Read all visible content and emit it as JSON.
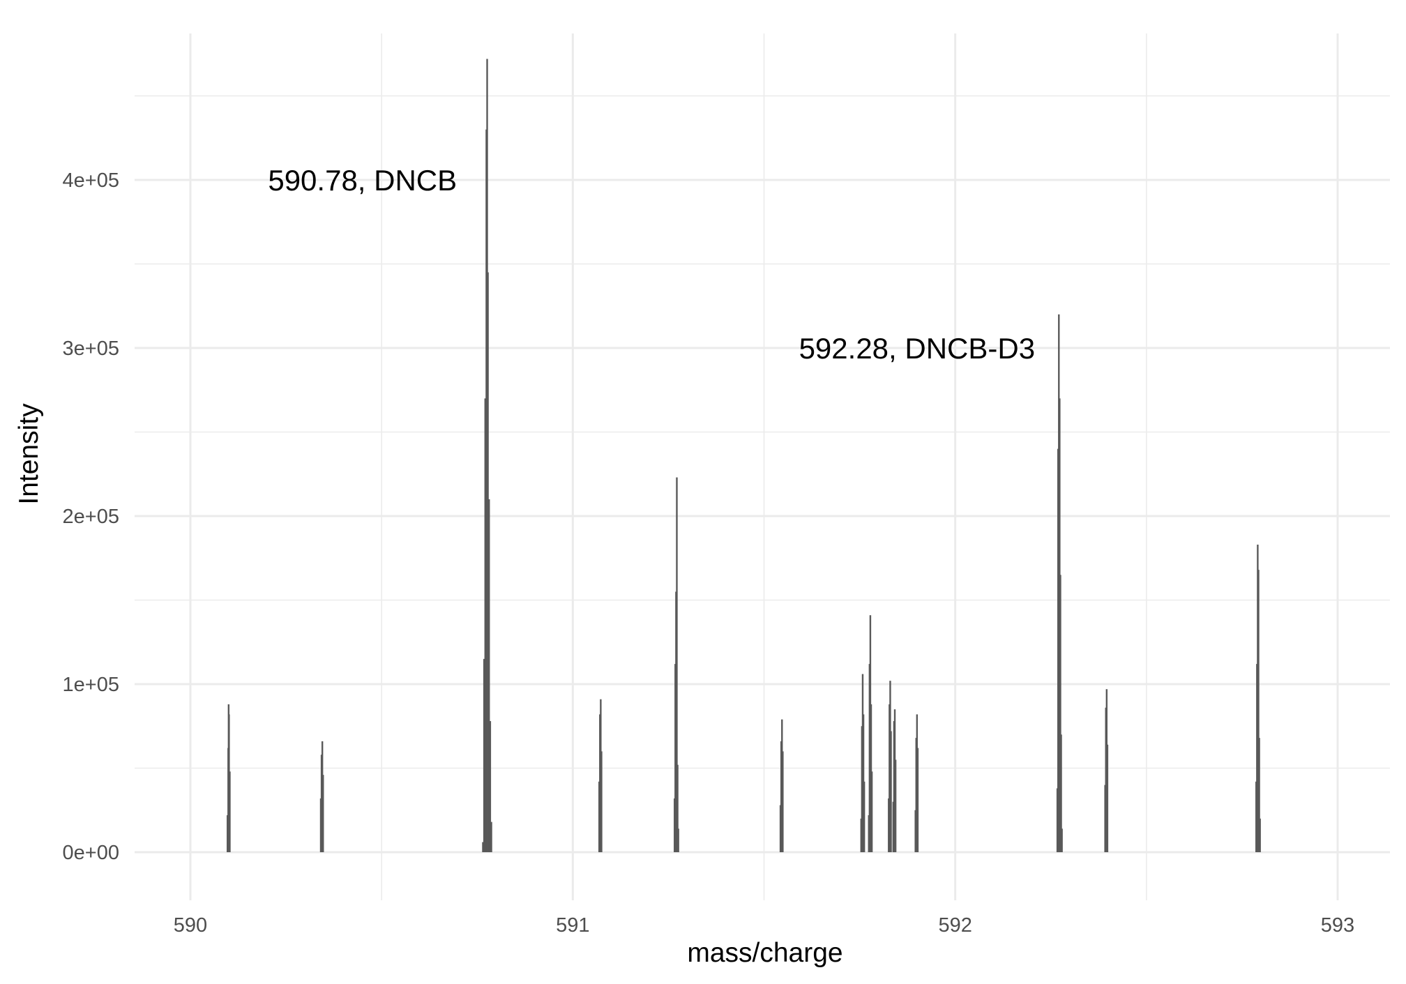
{
  "chart_data": {
    "type": "bar",
    "xlabel": "mass/charge",
    "ylabel": "Intensity",
    "xlim": [
      589.86,
      593.14
    ],
    "ylim": [
      -22000,
      472000
    ],
    "x_ticks": [
      590,
      591,
      592,
      593
    ],
    "x_tick_labels": [
      "590",
      "591",
      "592",
      "593"
    ],
    "x_minor_ticks": [
      590.5,
      591.5,
      592.5
    ],
    "y_ticks": [
      0,
      100000,
      200000,
      300000,
      400000
    ],
    "y_tick_labels": [
      "0e+00",
      "1e+05",
      "2e+05",
      "3e+05",
      "4e+05"
    ],
    "y_minor_ticks": [
      50000,
      150000,
      250000,
      350000,
      450000
    ],
    "grid": true,
    "series": [
      {
        "color": "#595959",
        "points": [
          {
            "x": 590.097,
            "y": 22000
          },
          {
            "x": 590.099,
            "y": 62000
          },
          {
            "x": 590.1,
            "y": 88000
          },
          {
            "x": 590.101,
            "y": 82000
          },
          {
            "x": 590.103,
            "y": 48000
          },
          {
            "x": 590.341,
            "y": 32000
          },
          {
            "x": 590.343,
            "y": 58000
          },
          {
            "x": 590.345,
            "y": 66000
          },
          {
            "x": 590.347,
            "y": 46000
          },
          {
            "x": 590.765,
            "y": 6000
          },
          {
            "x": 590.768,
            "y": 115000
          },
          {
            "x": 590.771,
            "y": 270000
          },
          {
            "x": 590.774,
            "y": 430000
          },
          {
            "x": 590.776,
            "y": 472000
          },
          {
            "x": 590.778,
            "y": 345000
          },
          {
            "x": 590.781,
            "y": 210000
          },
          {
            "x": 590.784,
            "y": 78000
          },
          {
            "x": 590.787,
            "y": 18000
          },
          {
            "x": 591.069,
            "y": 42000
          },
          {
            "x": 591.071,
            "y": 82000
          },
          {
            "x": 591.073,
            "y": 91000
          },
          {
            "x": 591.075,
            "y": 60000
          },
          {
            "x": 591.266,
            "y": 32000
          },
          {
            "x": 591.268,
            "y": 112000
          },
          {
            "x": 591.27,
            "y": 155000
          },
          {
            "x": 591.272,
            "y": 223000
          },
          {
            "x": 591.274,
            "y": 52000
          },
          {
            "x": 591.276,
            "y": 14000
          },
          {
            "x": 591.543,
            "y": 28000
          },
          {
            "x": 591.545,
            "y": 66000
          },
          {
            "x": 591.547,
            "y": 79000
          },
          {
            "x": 591.549,
            "y": 60000
          },
          {
            "x": 591.754,
            "y": 20000
          },
          {
            "x": 591.756,
            "y": 75000
          },
          {
            "x": 591.758,
            "y": 106000
          },
          {
            "x": 591.76,
            "y": 82000
          },
          {
            "x": 591.762,
            "y": 42000
          },
          {
            "x": 591.774,
            "y": 22000
          },
          {
            "x": 591.776,
            "y": 112000
          },
          {
            "x": 591.778,
            "y": 141000
          },
          {
            "x": 591.78,
            "y": 88000
          },
          {
            "x": 591.782,
            "y": 48000
          },
          {
            "x": 591.826,
            "y": 32000
          },
          {
            "x": 591.828,
            "y": 88000
          },
          {
            "x": 591.83,
            "y": 102000
          },
          {
            "x": 591.832,
            "y": 72000
          },
          {
            "x": 591.838,
            "y": 30000
          },
          {
            "x": 591.84,
            "y": 78000
          },
          {
            "x": 591.842,
            "y": 85000
          },
          {
            "x": 591.844,
            "y": 55000
          },
          {
            "x": 591.896,
            "y": 25000
          },
          {
            "x": 591.898,
            "y": 68000
          },
          {
            "x": 591.9,
            "y": 82000
          },
          {
            "x": 591.902,
            "y": 62000
          },
          {
            "x": 592.267,
            "y": 38000
          },
          {
            "x": 592.269,
            "y": 240000
          },
          {
            "x": 592.271,
            "y": 320000
          },
          {
            "x": 592.273,
            "y": 270000
          },
          {
            "x": 592.275,
            "y": 165000
          },
          {
            "x": 592.277,
            "y": 70000
          },
          {
            "x": 592.279,
            "y": 14000
          },
          {
            "x": 592.392,
            "y": 40000
          },
          {
            "x": 592.394,
            "y": 86000
          },
          {
            "x": 592.396,
            "y": 97000
          },
          {
            "x": 592.398,
            "y": 64000
          },
          {
            "x": 592.787,
            "y": 42000
          },
          {
            "x": 592.789,
            "y": 112000
          },
          {
            "x": 592.791,
            "y": 183000
          },
          {
            "x": 592.793,
            "y": 168000
          },
          {
            "x": 592.795,
            "y": 68000
          },
          {
            "x": 592.797,
            "y": 20000
          }
        ]
      }
    ],
    "annotations": [
      {
        "text": "590.78, DNCB",
        "x": 590.45,
        "y": 400000
      },
      {
        "text": "592.28, DNCB-D3",
        "x": 591.9,
        "y": 300000
      }
    ]
  }
}
